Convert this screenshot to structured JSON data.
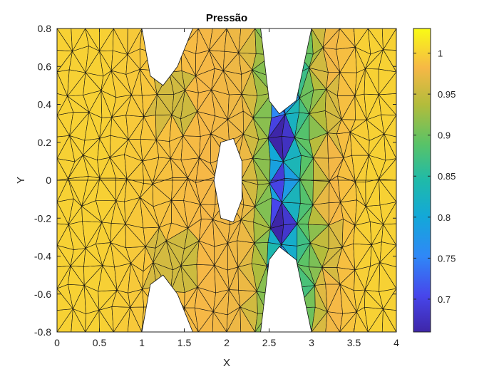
{
  "chart_data": {
    "type": "heatmap",
    "plot_kind": "triangular mesh (patch) colored by pressure",
    "title": "Pressão",
    "xlabel": "X",
    "ylabel": "Y",
    "xlim": [
      0,
      4
    ],
    "ylim": [
      -0.8,
      0.8
    ],
    "xticks": [
      "0",
      "0.5",
      "1",
      "1.5",
      "2",
      "2.5",
      "3",
      "3.5",
      "4"
    ],
    "yticks": [
      "-0.8",
      "-0.6",
      "-0.4",
      "-0.2",
      "0",
      "0.2",
      "0.4",
      "0.6",
      "0.8"
    ],
    "grid": false,
    "colorbar": {
      "colormap": "parula",
      "range": [
        0.66,
        1.03
      ],
      "ticks": [
        "0.7",
        "0.75",
        "0.8",
        "0.85",
        "0.9",
        "0.95",
        "1"
      ]
    },
    "domain": {
      "outer": [
        [
          0,
          0.8
        ],
        [
          4,
          0.8
        ],
        [
          4,
          -0.8
        ],
        [
          0,
          -0.8
        ]
      ],
      "cutouts": [
        {
          "name": "top-notch-1",
          "poly": [
            [
              1.0,
              0.8
            ],
            [
              1.1,
              0.55
            ],
            [
              1.25,
              0.5
            ],
            [
              1.42,
              0.6
            ],
            [
              1.6,
              0.8
            ]
          ]
        },
        {
          "name": "bottom-notch-1",
          "poly": [
            [
              1.0,
              -0.8
            ],
            [
              1.1,
              -0.55
            ],
            [
              1.25,
              -0.5
            ],
            [
              1.42,
              -0.6
            ],
            [
              1.6,
              -0.8
            ]
          ]
        },
        {
          "name": "top-notch-2",
          "poly": [
            [
              2.4,
              0.8
            ],
            [
              2.5,
              0.42
            ],
            [
              2.62,
              0.35
            ],
            [
              2.82,
              0.42
            ],
            [
              3.0,
              0.8
            ]
          ]
        },
        {
          "name": "bottom-notch-2",
          "poly": [
            [
              2.4,
              -0.8
            ],
            [
              2.5,
              -0.42
            ],
            [
              2.62,
              -0.35
            ],
            [
              2.82,
              -0.42
            ],
            [
              3.0,
              -0.8
            ]
          ]
        },
        {
          "name": "central-hole",
          "poly": [
            [
              1.85,
              0
            ],
            [
              1.93,
              0.2
            ],
            [
              2.08,
              0.22
            ],
            [
              2.18,
              0.1
            ],
            [
              2.18,
              -0.1
            ],
            [
              2.08,
              -0.22
            ],
            [
              1.93,
              -0.2
            ]
          ]
        }
      ]
    },
    "pressure_field": {
      "baseline": 1.0,
      "regions": [
        {
          "x": [
            0.0,
            1.0
          ],
          "value": 1.0
        },
        {
          "x": [
            1.0,
            2.0
          ],
          "value": 0.985
        },
        {
          "x": [
            2.0,
            2.45
          ],
          "value": 0.975
        },
        {
          "x": [
            2.45,
            2.55
          ],
          "value": 0.9
        },
        {
          "x": [
            2.55,
            2.7
          ],
          "value": 0.68
        },
        {
          "x": [
            2.7,
            2.85
          ],
          "value": 0.82
        },
        {
          "x": [
            2.85,
            3.0
          ],
          "value": 0.89
        },
        {
          "x": [
            3.0,
            3.3
          ],
          "value": 0.975
        },
        {
          "x": [
            3.3,
            4.0
          ],
          "value": 1.0
        }
      ]
    }
  }
}
